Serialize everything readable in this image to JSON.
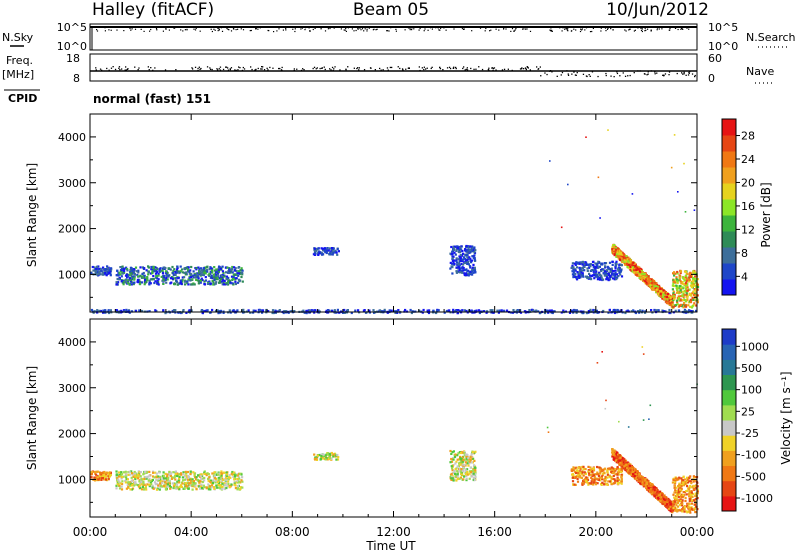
{
  "header": {
    "site": "Halley (fitACF)",
    "beam": "Beam 05",
    "date": "10/Jun/2012",
    "mode": "normal (fast) 151"
  },
  "top_panels": {
    "nsky_label": "N.Sky",
    "nsky_ticks": [
      "10^5",
      "10^0"
    ],
    "nsearch_label": "N.Search",
    "nsearch_ticks": [
      "10^5",
      "10^0"
    ],
    "freq_label": "Freq.",
    "freq_unit": "[MHz]",
    "freq_ticks": [
      "18",
      "8"
    ],
    "nave_label": "Nave",
    "nave_ticks": [
      "60",
      "0"
    ],
    "cpid_label": "CPID"
  },
  "chart_data": [
    {
      "type": "heatmap",
      "panel": "power",
      "xlabel": "",
      "ylabel": "Slant Range [km]",
      "xlim": [
        "00:00",
        "24:00"
      ],
      "ylim": [
        180,
        4500
      ],
      "yticks": [
        1000,
        2000,
        3000,
        4000
      ],
      "colorbar": {
        "label": "Power [dB]",
        "ticks": [
          "4",
          "8",
          "12",
          "16",
          "20",
          "24",
          "28"
        ],
        "colors": [
          "#1414f0",
          "#1e46c8",
          "#3c6e9a",
          "#2e8b57",
          "#3cb43c",
          "#8ce628",
          "#e6d21e",
          "#f0a01e",
          "#f07814",
          "#e64614",
          "#e61414"
        ]
      },
      "echo_regions": [
        {
          "t_start": 0.0,
          "t_end": 0.8,
          "r_min": 1000,
          "r_max": 1200,
          "level": "low"
        },
        {
          "t_start": 1.0,
          "t_end": 6.0,
          "r_min": 800,
          "r_max": 1200,
          "level": "low-mid"
        },
        {
          "t_start": 8.8,
          "t_end": 9.8,
          "r_min": 1450,
          "r_max": 1600,
          "level": "low"
        },
        {
          "t_start": 14.2,
          "t_end": 15.2,
          "r_min": 1000,
          "r_max": 1650,
          "level": "low"
        },
        {
          "t_start": 19.0,
          "t_end": 21.0,
          "r_min": 900,
          "r_max": 1300,
          "level": "low"
        },
        {
          "t_start": 20.6,
          "t_end": 23.0,
          "r_min": 400,
          "r_max": 1600,
          "level": "high"
        },
        {
          "t_start": 23.0,
          "t_end": 24.0,
          "r_min": 300,
          "r_max": 1100,
          "level": "mid-high"
        },
        {
          "t_start": 0.0,
          "t_end": 24.0,
          "r_min": 180,
          "r_max": 250,
          "level": "low"
        }
      ]
    },
    {
      "type": "heatmap",
      "panel": "velocity",
      "xlabel": "Time UT",
      "ylabel": "Slant Range [km]",
      "xlim": [
        "00:00",
        "24:00"
      ],
      "xticks": [
        "00:00",
        "04:00",
        "08:00",
        "12:00",
        "16:00",
        "20:00",
        "00:00"
      ],
      "ylim": [
        180,
        4500
      ],
      "yticks": [
        1000,
        2000,
        3000,
        4000
      ],
      "colorbar": {
        "label": "Velocity [m s⁻¹]",
        "ticks": [
          "1000",
          "500",
          "100",
          "25",
          "-25",
          "-100",
          "-500",
          "-1000"
        ],
        "colors": [
          "#1e3cc8",
          "#2864b4",
          "#287896",
          "#2e9650",
          "#50c83c",
          "#a0dc50",
          "#c8c8c8",
          "#f0d228",
          "#f0a01e",
          "#f07814",
          "#e64614",
          "#e61414"
        ]
      },
      "echo_regions": [
        {
          "t_start": 0.0,
          "t_end": 0.8,
          "r_min": 1000,
          "r_max": 1200,
          "level": "negative"
        },
        {
          "t_start": 1.0,
          "t_end": 6.0,
          "r_min": 800,
          "r_max": 1200,
          "level": "near-zero"
        },
        {
          "t_start": 8.8,
          "t_end": 9.8,
          "r_min": 1450,
          "r_max": 1600,
          "level": "near-zero"
        },
        {
          "t_start": 14.2,
          "t_end": 15.2,
          "r_min": 1000,
          "r_max": 1650,
          "level": "near-zero"
        },
        {
          "t_start": 19.0,
          "t_end": 21.0,
          "r_min": 900,
          "r_max": 1300,
          "level": "negative"
        },
        {
          "t_start": 20.6,
          "t_end": 23.0,
          "r_min": 400,
          "r_max": 1600,
          "level": "strong-negative"
        },
        {
          "t_start": 23.0,
          "t_end": 24.0,
          "r_min": 300,
          "r_max": 1100,
          "level": "negative"
        }
      ]
    }
  ]
}
